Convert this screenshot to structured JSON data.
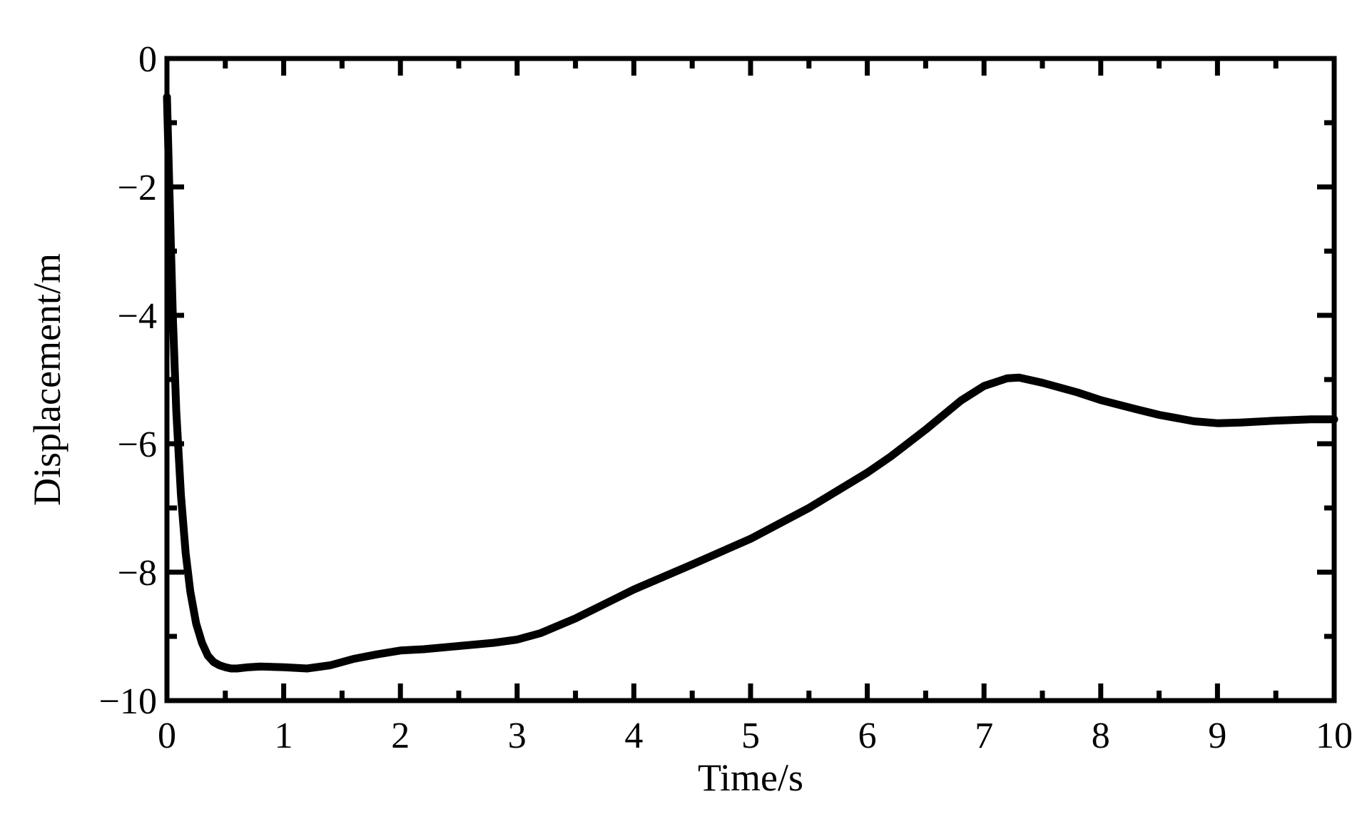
{
  "chart_data": {
    "type": "line",
    "title": "",
    "xlabel": "Time/s",
    "ylabel": "Displacement/m",
    "xlim": [
      0,
      10
    ],
    "ylim": [
      -10,
      0
    ],
    "xticks": [
      0,
      1,
      2,
      3,
      4,
      5,
      6,
      7,
      8,
      9,
      10
    ],
    "yticks": [
      0,
      -2,
      -4,
      -6,
      -8,
      -10
    ],
    "xtick_labels": [
      "0",
      "1",
      "2",
      "3",
      "4",
      "5",
      "6",
      "7",
      "8",
      "9",
      "10"
    ],
    "ytick_labels": [
      "0",
      "−2",
      "−4",
      "−6",
      "−8",
      "−10"
    ],
    "grid": false,
    "line_color": "#000000",
    "series": [
      {
        "x": [
          0.0,
          0.02,
          0.05,
          0.08,
          0.12,
          0.16,
          0.2,
          0.25,
          0.3,
          0.35,
          0.4,
          0.45,
          0.5,
          0.55,
          0.6,
          0.7,
          0.8,
          1.0,
          1.2,
          1.4,
          1.6,
          1.8,
          2.0,
          2.2,
          2.5,
          2.8,
          3.0,
          3.2,
          3.5,
          3.8,
          4.0,
          4.5,
          5.0,
          5.5,
          6.0,
          6.2,
          6.5,
          6.8,
          7.0,
          7.2,
          7.3,
          7.5,
          7.8,
          8.0,
          8.3,
          8.5,
          8.8,
          9.0,
          9.2,
          9.5,
          9.8,
          10.0
        ],
        "y": [
          -0.6,
          -2.0,
          -4.0,
          -5.5,
          -6.8,
          -7.7,
          -8.3,
          -8.8,
          -9.1,
          -9.3,
          -9.4,
          -9.45,
          -9.48,
          -9.5,
          -9.5,
          -9.48,
          -9.47,
          -9.48,
          -9.5,
          -9.45,
          -9.35,
          -9.28,
          -9.22,
          -9.2,
          -9.15,
          -9.1,
          -9.05,
          -8.95,
          -8.72,
          -8.45,
          -8.27,
          -7.88,
          -7.48,
          -7.0,
          -6.45,
          -6.2,
          -5.78,
          -5.33,
          -5.1,
          -4.98,
          -4.97,
          -5.05,
          -5.2,
          -5.32,
          -5.46,
          -5.55,
          -5.65,
          -5.68,
          -5.67,
          -5.64,
          -5.62,
          -5.62
        ]
      }
    ]
  }
}
